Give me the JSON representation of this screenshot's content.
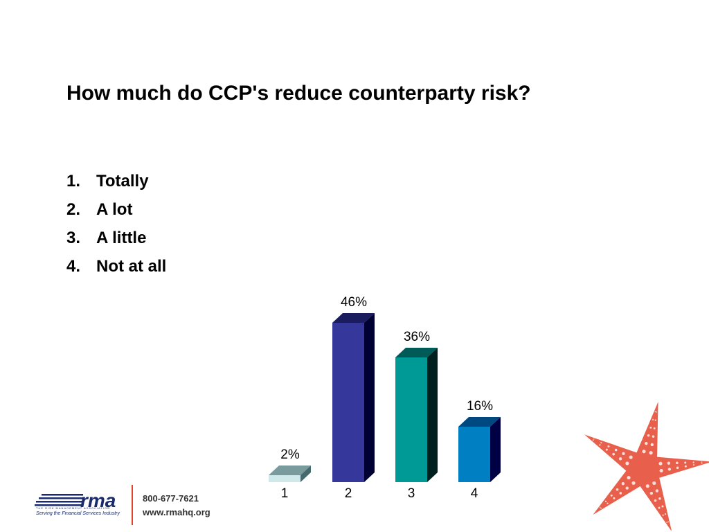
{
  "slide": {
    "title": "How much do CCP's reduce counterparty risk?",
    "options": [
      {
        "number": "1.",
        "label": "Totally"
      },
      {
        "number": "2.",
        "label": "A lot"
      },
      {
        "number": "3.",
        "label": "A little"
      },
      {
        "number": "4.",
        "label": "Not at all"
      }
    ]
  },
  "chart_data": {
    "type": "bar",
    "categories": [
      "1",
      "2",
      "3",
      "4"
    ],
    "values": [
      2,
      46,
      36,
      16
    ],
    "value_labels": [
      "2%",
      "46%",
      "36%",
      "16%"
    ],
    "ylim": [
      0,
      46
    ],
    "style": "3d",
    "colors": {
      "front": [
        "#cfe9ea",
        "#35379a",
        "#009a96",
        "#0080c2"
      ],
      "top": [
        "#7a9b9e",
        "#1b1c5e",
        "#005a58",
        "#004880"
      ],
      "side": [
        "#456a6e",
        "#000033",
        "#001f1f",
        "#000044"
      ]
    }
  },
  "footer": {
    "logo_text": "rma",
    "logo_subtitle": "THE RISK MANAGEMENT ASSOCIATION",
    "tagline": "Serving the Financial Services Industry",
    "phone": "800-677-7621",
    "website": "www.rmahq.org",
    "accent_color": "#e0442b"
  },
  "decoration": {
    "icon": "starfish-icon",
    "color": "#e8604c"
  }
}
